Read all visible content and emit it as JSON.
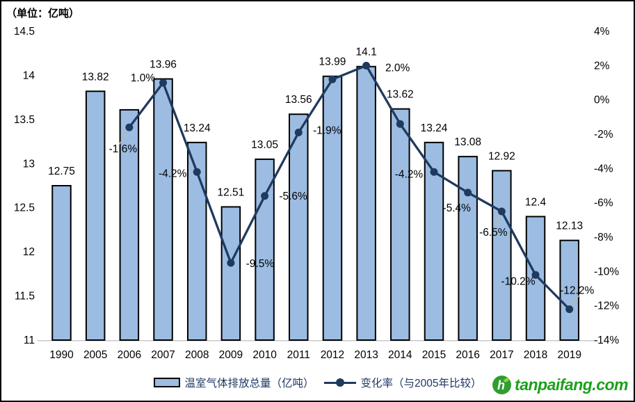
{
  "unit_label": "（单位：亿吨）",
  "chart_data": {
    "type": "combo-bar-line",
    "title": "",
    "unit": "亿吨",
    "categories": [
      "1990",
      "2005",
      "2006",
      "2007",
      "2008",
      "2009",
      "2010",
      "2011",
      "2012",
      "2013",
      "2014",
      "2015",
      "2016",
      "2017",
      "2018",
      "2019"
    ],
    "series": [
      {
        "name": "温室气体排放总量（亿吨）",
        "type": "bar",
        "values": [
          12.75,
          13.82,
          13.61,
          13.96,
          13.24,
          12.51,
          13.05,
          13.56,
          13.99,
          14.1,
          13.62,
          13.24,
          13.08,
          12.92,
          12.4,
          12.13
        ],
        "labels": [
          "12.75",
          "13.82",
          "",
          "13.96",
          "13.24",
          "12.51",
          "13.05",
          "13.56",
          "13.99",
          "14.1",
          "13.62",
          "13.24",
          "13.08",
          "12.92",
          "12.4",
          "12.13"
        ]
      },
      {
        "name": "变化率（与2005年比较）",
        "type": "line",
        "start_index": 2,
        "values": [
          -1.6,
          1.0,
          -4.2,
          -9.5,
          -5.6,
          -1.9,
          1.2,
          2.0,
          -1.4,
          -4.2,
          -5.4,
          -6.5,
          -10.2,
          -12.2
        ],
        "labels": [
          "-1.6%",
          "1.0%",
          "-4.2%",
          "-9.5%",
          "-5.6%",
          "-1.9%",
          "",
          "2.0%",
          "",
          "-4.2%",
          "-5.4%",
          "-6.5%",
          "-10.2%",
          "-12.2%"
        ]
      }
    ],
    "left_axis": {
      "ticks": [
        "14.5",
        "14",
        "13.5",
        "13",
        "12.5",
        "12",
        "11.5",
        "11"
      ],
      "min": 11,
      "max": 14.5
    },
    "right_axis": {
      "ticks": [
        "4%",
        "2%",
        "0%",
        "-2%",
        "-4%",
        "-6%",
        "-8%",
        "-10%",
        "-12%",
        "-14%"
      ],
      "min": -14,
      "max": 4
    },
    "grid": false,
    "legend_position": "bottom"
  },
  "legend": {
    "bar_label": "温室气体排放总量（亿吨）",
    "line_label": "变化率（与2005年比较）"
  },
  "logo": {
    "text": "tanpaifang.com",
    "icon": "tanpaifang-leaf-icon"
  },
  "colors": {
    "bar_fill": "#9CBCE2",
    "bar_border": "#000000",
    "line": "#1F3A5F",
    "marker": "#1F3A5F",
    "axis_text": "#000000",
    "legend_text": "#1F3864",
    "baseline": "#C9C9C9",
    "leader_line": "#BFB5A9",
    "logo_green": "#1BA11B"
  }
}
